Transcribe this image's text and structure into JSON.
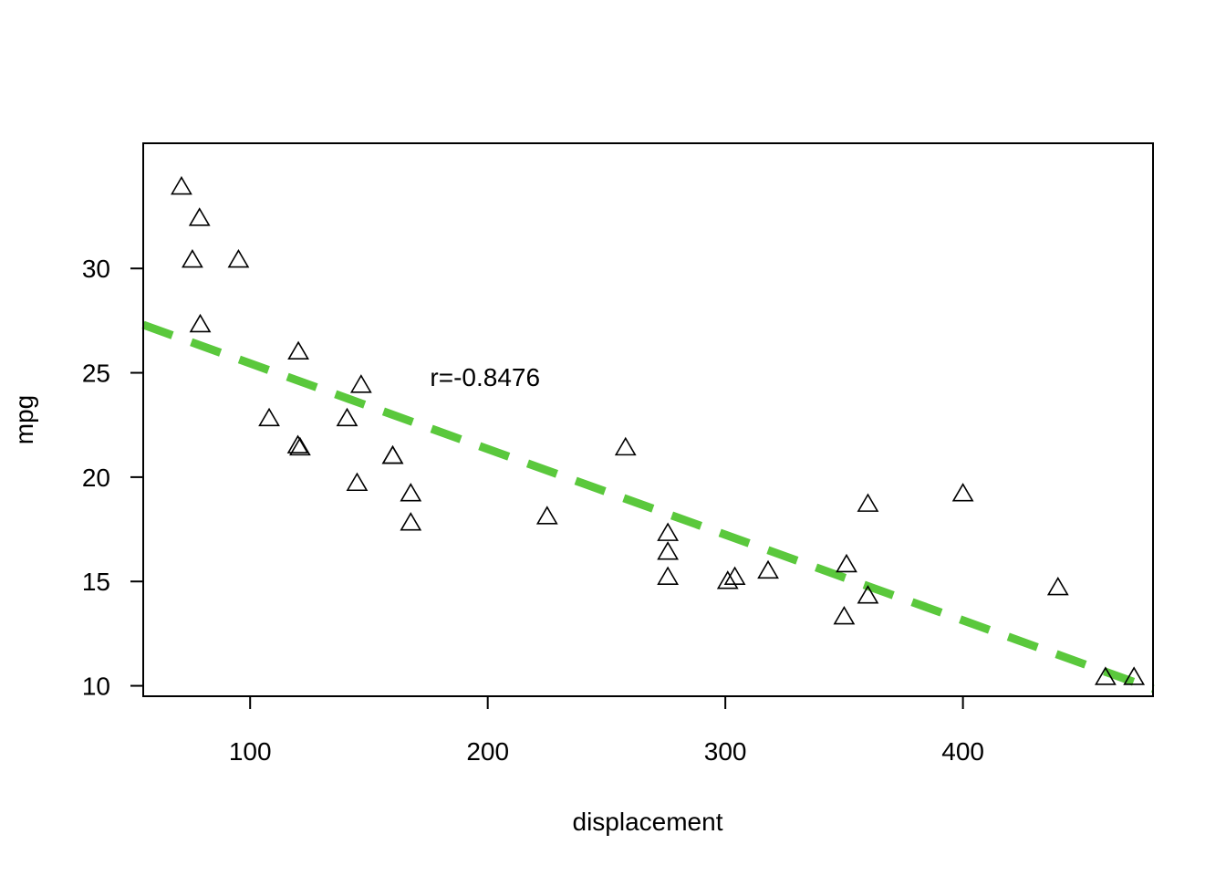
{
  "chart_data": {
    "type": "scatter",
    "title": "",
    "xlabel": "displacement",
    "ylabel": "mpg",
    "xlim": [
      55,
      480
    ],
    "ylim": [
      9.5,
      36
    ],
    "xticks": [
      100,
      200,
      300,
      400
    ],
    "xtick_labels": [
      "100",
      "200",
      "300",
      "400"
    ],
    "yticks": [
      10,
      15,
      20,
      25,
      30
    ],
    "ytick_labels": [
      "10",
      "15",
      "20",
      "25",
      "30"
    ],
    "grid": false,
    "legend": "none",
    "marker": "triangle-open",
    "series": [
      {
        "points": [
          [
            71.1,
            33.9
          ],
          [
            78.7,
            32.4
          ],
          [
            75.7,
            30.4
          ],
          [
            95.1,
            30.4
          ],
          [
            79.0,
            27.3
          ],
          [
            120.3,
            26.0
          ],
          [
            146.7,
            24.4
          ],
          [
            108.0,
            22.8
          ],
          [
            140.8,
            22.8
          ],
          [
            120.1,
            21.5
          ],
          [
            121.0,
            21.4
          ],
          [
            160.0,
            21.0
          ],
          [
            160.0,
            21.0
          ],
          [
            258.0,
            21.4
          ],
          [
            145.0,
            19.7
          ],
          [
            167.6,
            19.2
          ],
          [
            400.0,
            19.2
          ],
          [
            360.0,
            18.7
          ],
          [
            225.0,
            18.1
          ],
          [
            167.6,
            17.8
          ],
          [
            275.8,
            17.3
          ],
          [
            275.8,
            16.4
          ],
          [
            351.0,
            15.8
          ],
          [
            318.0,
            15.5
          ],
          [
            304.0,
            15.2
          ],
          [
            275.8,
            15.2
          ],
          [
            301.0,
            15.0
          ],
          [
            440.0,
            14.7
          ],
          [
            360.0,
            14.3
          ],
          [
            350.0,
            13.3
          ],
          [
            460.0,
            10.4
          ],
          [
            472.0,
            10.4
          ]
        ]
      }
    ],
    "trend_line": {
      "x": [
        55,
        480
      ],
      "y": [
        27.3,
        9.85
      ],
      "color": "#5ac83c",
      "style": "dashed"
    },
    "annotations": [
      {
        "text": "r=-0.8476",
        "x": 172,
        "y": 24.8
      }
    ]
  }
}
